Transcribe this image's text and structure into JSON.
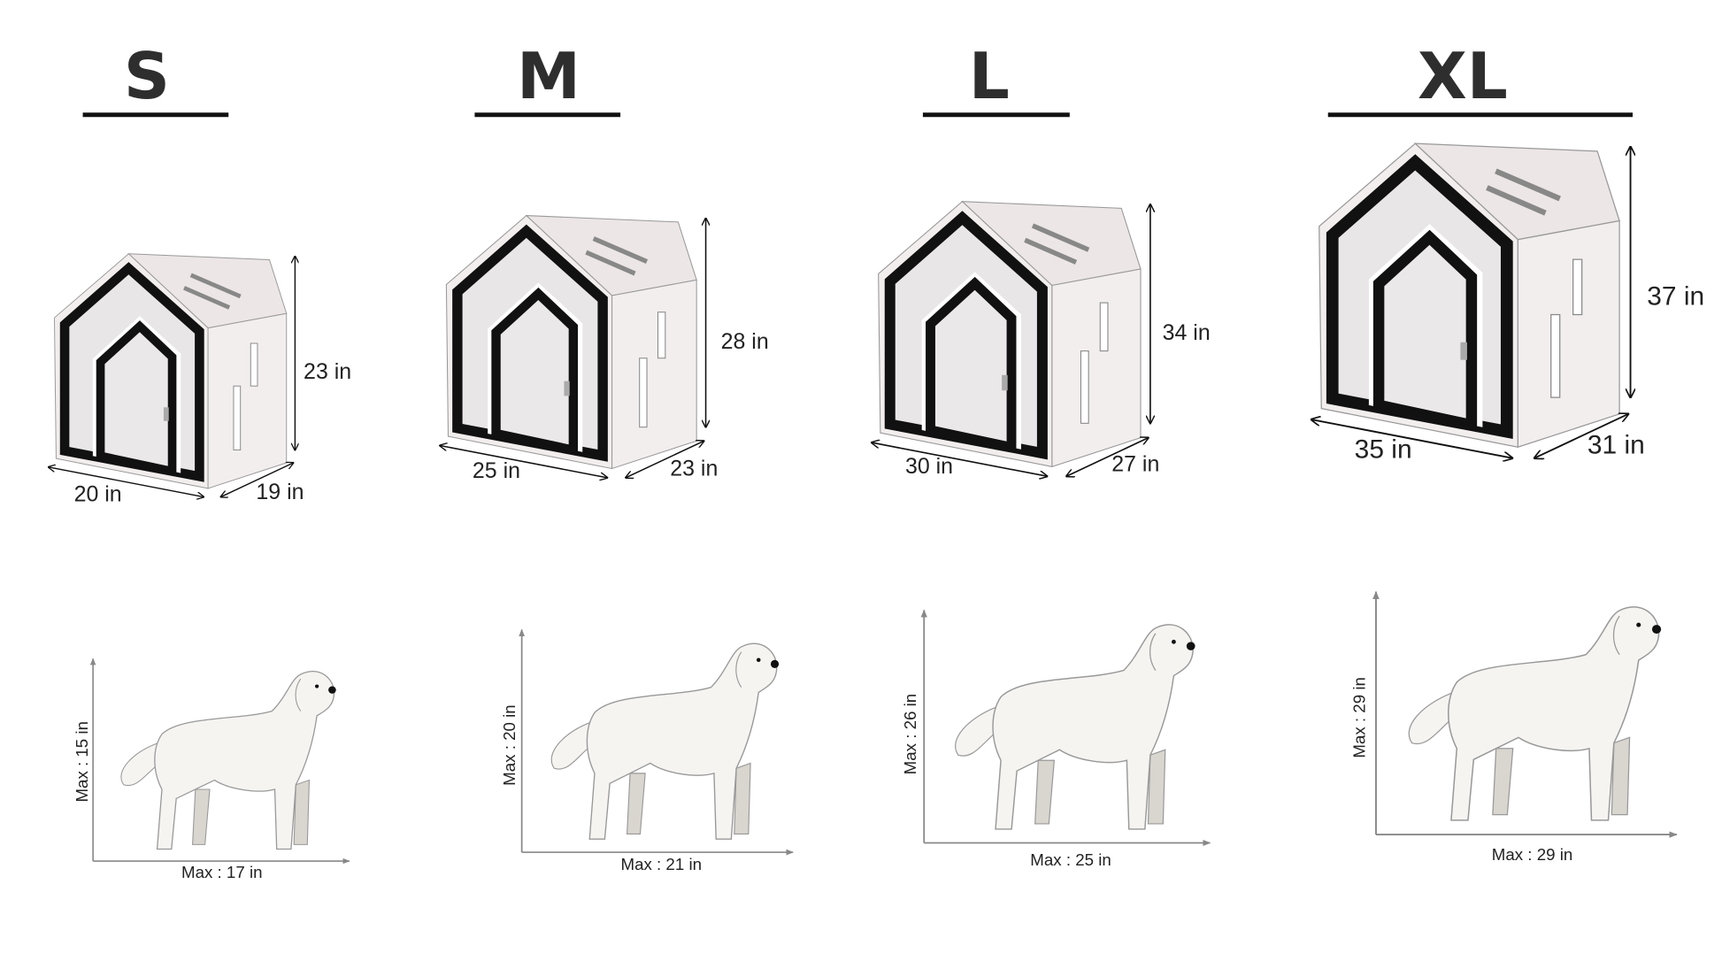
{
  "sizes": [
    {
      "label": "S",
      "height": "23 in",
      "width": "20 in",
      "depth": "19 in",
      "dog_height": "Max : 15 in",
      "dog_length": "Max : 17 in"
    },
    {
      "label": "M",
      "height": "28 in",
      "width": "25 in",
      "depth": "23 in",
      "dog_height": "Max : 20 in",
      "dog_length": "Max : 21 in"
    },
    {
      "label": "L",
      "height": "34 in",
      "width": "30 in",
      "depth": "27 in",
      "dog_height": "Max : 26 in",
      "dog_length": "Max : 25 in"
    },
    {
      "label": "XL",
      "height": "37 in",
      "width": "35 in",
      "depth": "31 in",
      "dog_height": "Max : 29 in",
      "dog_length": "Max : 29 in"
    }
  ],
  "colors": {
    "frame": "#111111",
    "panel": "#f3eeee",
    "title": "#2e2e2e",
    "dog": "#f6f4f1",
    "dog_shade": "#d9d5cf"
  }
}
